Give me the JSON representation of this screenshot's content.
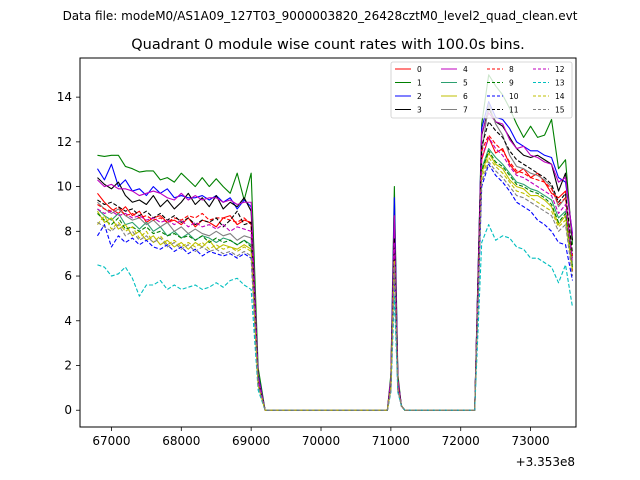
{
  "figure": {
    "suptitle": "Data file: modeM0/AS1A09_127T03_9000003820_26428cztM0_level2_quad_clean.evt",
    "title": "Quadrant 0 module wise count rates with 100.0s bins."
  },
  "chart_data": {
    "type": "line",
    "x_offset_label": "+3.353e8",
    "xlim": [
      66550,
      73650
    ],
    "ylim": [
      -0.75,
      15.75
    ],
    "x_ticks": [
      67000,
      68000,
      69000,
      70000,
      71000,
      72000,
      73000
    ],
    "x_tick_labels": [
      "67000",
      "68000",
      "69000",
      "70000",
      "71000",
      "72000",
      "73000"
    ],
    "y_ticks": [
      0,
      2,
      4,
      6,
      8,
      10,
      12,
      14
    ],
    "y_tick_labels": [
      "0",
      "2",
      "4",
      "6",
      "8",
      "10",
      "12",
      "14"
    ],
    "segments": [
      {
        "x": [
          66800,
          66900,
          67000,
          67100,
          67200,
          67300,
          67400,
          67500,
          67600,
          67700,
          67800,
          67900,
          68000,
          68100,
          68200,
          68300,
          68400,
          68500,
          68600,
          68700,
          68800,
          68900,
          69000,
          69100,
          69200
        ]
      },
      {
        "x": [
          69200,
          70950
        ]
      },
      {
        "x": [
          70950,
          71000,
          71050,
          71100,
          71150,
          71200
        ]
      },
      {
        "x": [
          71200,
          72200
        ]
      },
      {
        "x": [
          72200,
          72300,
          72400,
          72500,
          72600,
          72700,
          72800,
          72900,
          73000,
          73100,
          73200,
          73300,
          73400,
          73500,
          73600
        ]
      }
    ],
    "series": [
      {
        "name": "0",
        "color": "#ff0000",
        "dash": "solid",
        "y": [
          [
            9.7,
            9.3,
            9.0,
            8.8,
            9.1,
            8.7,
            8.9,
            8.4,
            8.6,
            8.7,
            8.4,
            8.5,
            8.3,
            8.6,
            8.2,
            8.5,
            8.4,
            8.2,
            8.6,
            8.7,
            8.3,
            8.5,
            8.4,
            1.3,
            0
          ],
          [
            0,
            0
          ],
          [
            0,
            1.1,
            7.8,
            1.3,
            0.2,
            0
          ],
          [
            0,
            0
          ],
          [
            0,
            11.2,
            12.2,
            11.5,
            11.7,
            11.0,
            10.6,
            10.8,
            10.4,
            10.6,
            10.2,
            9.7,
            9.5,
            9.8,
            6.2
          ]
        ]
      },
      {
        "name": "1",
        "color": "#008000",
        "dash": "solid",
        "y": [
          [
            11.4,
            11.35,
            11.4,
            11.4,
            10.9,
            10.8,
            10.65,
            10.7,
            10.7,
            10.3,
            10.4,
            10.2,
            10.6,
            10.3,
            10.0,
            10.4,
            10.0,
            10.35,
            10.0,
            9.7,
            10.6,
            9.4,
            10.6,
            1.9,
            0
          ],
          [
            0,
            0
          ],
          [
            0,
            1.6,
            10.0,
            1.6,
            0.2,
            0
          ],
          [
            0,
            0
          ],
          [
            0,
            12.8,
            15.0,
            14.5,
            14.1,
            13.5,
            12.8,
            12.2,
            12.7,
            12.2,
            12.3,
            13.0,
            10.8,
            11.2,
            7.4
          ]
        ]
      },
      {
        "name": "2",
        "color": "#0000ff",
        "dash": "solid",
        "y": [
          [
            10.8,
            10.3,
            11.0,
            10.0,
            10.3,
            9.8,
            9.9,
            9.6,
            10.0,
            9.7,
            9.9,
            9.5,
            9.6,
            9.5,
            9.5,
            9.6,
            9.4,
            9.6,
            9.3,
            9.5,
            9.0,
            9.4,
            9.1,
            1.6,
            0
          ],
          [
            0,
            0
          ],
          [
            0,
            1.4,
            9.5,
            1.4,
            0.2,
            0
          ],
          [
            0,
            0
          ],
          [
            0,
            12.6,
            13.8,
            13.1,
            13.0,
            12.6,
            12.0,
            11.8,
            11.6,
            11.6,
            11.4,
            11.3,
            10.4,
            10.2,
            7.9
          ]
        ]
      },
      {
        "name": "3",
        "color": "#000000",
        "dash": "solid",
        "y": [
          [
            10.4,
            10.1,
            9.9,
            10.2,
            9.6,
            9.3,
            9.4,
            9.2,
            9.6,
            9.1,
            9.4,
            9.0,
            9.3,
            9.7,
            9.2,
            9.5,
            9.1,
            9.6,
            9.0,
            9.3,
            9.1,
            9.5,
            8.9,
            1.5,
            0
          ],
          [
            0,
            0
          ],
          [
            0,
            1.4,
            8.6,
            1.4,
            0.2,
            0
          ],
          [
            0,
            0
          ],
          [
            0,
            12.3,
            13.5,
            12.9,
            12.7,
            12.2,
            11.7,
            11.4,
            11.3,
            11.4,
            11.2,
            11.0,
            9.8,
            10.6,
            7.6
          ]
        ]
      },
      {
        "name": "4",
        "color": "#bf00bf",
        "dash": "solid",
        "y": [
          [
            10.3,
            10.0,
            10.1,
            9.9,
            9.9,
            9.8,
            9.6,
            9.7,
            9.8,
            9.7,
            9.5,
            9.4,
            9.7,
            9.4,
            9.6,
            9.4,
            9.5,
            9.5,
            9.3,
            9.4,
            9.2,
            9.3,
            9.3,
            1.5,
            0
          ],
          [
            0,
            0
          ],
          [
            0,
            1.4,
            8.7,
            1.4,
            0.2,
            0
          ],
          [
            0,
            0
          ],
          [
            0,
            12.4,
            13.3,
            12.9,
            12.8,
            12.1,
            11.7,
            11.8,
            11.4,
            11.3,
            11.1,
            11.0,
            10.2,
            10.4,
            7.8
          ]
        ]
      },
      {
        "name": "5",
        "color": "#2ca070",
        "dash": "solid",
        "y": [
          [
            9.0,
            8.7,
            8.5,
            8.8,
            8.3,
            8.4,
            8.1,
            8.4,
            8.0,
            8.2,
            7.8,
            8.0,
            7.7,
            7.9,
            7.6,
            7.8,
            7.7,
            7.5,
            7.7,
            7.6,
            7.4,
            7.6,
            7.4,
            1.2,
            0
          ],
          [
            0,
            0
          ],
          [
            0,
            1.0,
            7.0,
            1.0,
            0.2,
            0
          ],
          [
            0,
            0
          ],
          [
            0,
            10.8,
            11.7,
            11.3,
            11.0,
            10.6,
            10.2,
            10.1,
            9.9,
            9.8,
            9.6,
            9.4,
            8.6,
            8.9,
            6.5
          ]
        ]
      },
      {
        "name": "6",
        "color": "#bfbf00",
        "dash": "solid",
        "y": [
          [
            8.9,
            8.4,
            8.6,
            8.1,
            8.3,
            7.8,
            8.0,
            7.6,
            7.8,
            7.4,
            7.6,
            7.3,
            7.5,
            7.2,
            7.5,
            7.3,
            7.6,
            7.2,
            7.4,
            7.3,
            7.2,
            7.4,
            7.2,
            1.2,
            0
          ],
          [
            0,
            0
          ],
          [
            0,
            1.0,
            6.9,
            1.0,
            0.2,
            0
          ],
          [
            0,
            0
          ],
          [
            0,
            10.6,
            11.5,
            11.0,
            10.8,
            10.3,
            10.0,
            9.9,
            9.6,
            9.6,
            9.4,
            9.1,
            8.3,
            8.7,
            6.3
          ]
        ]
      },
      {
        "name": "7",
        "color": "#808080",
        "dash": "solid",
        "y": [
          [
            9.3,
            9.0,
            8.8,
            9.0,
            8.7,
            8.5,
            8.6,
            8.3,
            8.5,
            8.2,
            8.4,
            8.0,
            8.2,
            7.9,
            8.1,
            7.9,
            7.8,
            8.0,
            7.8,
            7.9,
            7.6,
            7.8,
            7.7,
            1.3,
            0
          ],
          [
            0,
            0
          ],
          [
            0,
            1.1,
            7.4,
            1.1,
            0.2,
            0
          ],
          [
            0,
            0
          ],
          [
            0,
            11.5,
            13.7,
            12.8,
            12.3,
            11.4,
            10.9,
            10.8,
            10.6,
            10.5,
            10.3,
            10.0,
            9.1,
            9.5,
            6.8
          ]
        ]
      },
      {
        "name": "8",
        "color": "#ff0000",
        "dash": "dashed",
        "y": [
          [
            9.2,
            9.0,
            8.9,
            9.1,
            8.7,
            8.8,
            8.6,
            8.7,
            8.5,
            8.6,
            8.4,
            8.6,
            8.5,
            8.7,
            8.6,
            8.8,
            8.5,
            8.6,
            8.6,
            8.5,
            8.4,
            8.6,
            8.3,
            1.3,
            0
          ],
          [
            0,
            0
          ],
          [
            0,
            1.1,
            7.6,
            1.1,
            0.2,
            0
          ],
          [
            0,
            0
          ],
          [
            0,
            11.6,
            12.3,
            11.9,
            11.6,
            11.1,
            10.7,
            10.6,
            10.4,
            10.3,
            10.2,
            9.9,
            9.2,
            9.5,
            6.9
          ]
        ]
      },
      {
        "name": "9",
        "color": "#008000",
        "dash": "dashed",
        "y": [
          [
            8.8,
            8.5,
            8.3,
            8.6,
            8.1,
            8.2,
            8.0,
            8.2,
            7.9,
            8.0,
            7.8,
            7.9,
            7.7,
            7.8,
            7.6,
            7.8,
            7.5,
            7.7,
            7.5,
            7.6,
            7.4,
            7.6,
            7.3,
            1.2,
            0
          ],
          [
            0,
            0
          ],
          [
            0,
            1.0,
            6.9,
            1.0,
            0.2,
            0
          ],
          [
            0,
            0
          ],
          [
            0,
            10.7,
            11.6,
            11.1,
            10.9,
            10.5,
            10.1,
            10.0,
            9.8,
            9.7,
            9.5,
            9.2,
            8.4,
            8.8,
            6.4
          ]
        ]
      },
      {
        "name": "10",
        "color": "#0000ff",
        "dash": "dashed",
        "y": [
          [
            7.8,
            8.3,
            7.3,
            7.8,
            7.5,
            7.7,
            7.4,
            7.6,
            7.3,
            7.2,
            7.4,
            7.1,
            7.3,
            7.0,
            7.2,
            6.9,
            7.1,
            7.0,
            6.9,
            7.0,
            6.8,
            7.0,
            6.8,
            1.1,
            0
          ],
          [
            0,
            0
          ],
          [
            0,
            0.9,
            6.4,
            0.9,
            0.2,
            0
          ],
          [
            0,
            0
          ],
          [
            0,
            10.0,
            11.0,
            10.5,
            10.2,
            9.8,
            9.3,
            9.1,
            8.9,
            8.5,
            8.3,
            8.0,
            7.5,
            7.4,
            5.8
          ]
        ]
      },
      {
        "name": "11",
        "color": "#000000",
        "dash": "dashed",
        "y": [
          [
            9.4,
            9.2,
            9.3,
            9.1,
            8.9,
            9.0,
            8.7,
            8.9,
            8.6,
            8.8,
            8.5,
            8.7,
            8.4,
            8.6,
            8.3,
            8.5,
            8.4,
            8.6,
            8.2,
            8.5,
            8.9,
            8.3,
            8.4,
            1.3,
            0
          ],
          [
            0,
            0
          ],
          [
            0,
            1.1,
            7.7,
            1.1,
            0.2,
            0
          ],
          [
            0,
            0
          ],
          [
            0,
            11.8,
            12.9,
            12.5,
            12.2,
            11.6,
            11.2,
            11.0,
            10.8,
            10.6,
            10.4,
            10.1,
            9.3,
            9.7,
            7.0
          ]
        ]
      },
      {
        "name": "12",
        "color": "#bf00bf",
        "dash": "dashed",
        "y": [
          [
            9.0,
            8.8,
            8.9,
            8.7,
            8.8,
            8.6,
            8.7,
            8.5,
            8.6,
            8.4,
            8.5,
            8.3,
            8.5,
            8.2,
            8.4,
            8.2,
            8.3,
            8.1,
            8.3,
            8.0,
            8.2,
            8.1,
            8.0,
            1.3,
            0
          ],
          [
            0,
            0
          ],
          [
            0,
            1.1,
            7.5,
            1.1,
            0.2,
            0
          ],
          [
            0,
            0
          ],
          [
            0,
            11.3,
            12.2,
            11.7,
            11.4,
            10.9,
            10.5,
            10.4,
            10.2,
            10.0,
            9.8,
            9.6,
            8.8,
            9.2,
            6.6
          ]
        ]
      },
      {
        "name": "13",
        "color": "#00bfbf",
        "dash": "dashed",
        "y": [
          [
            6.5,
            6.4,
            6.0,
            6.1,
            6.4,
            5.9,
            5.1,
            5.6,
            5.6,
            5.8,
            5.4,
            5.6,
            5.4,
            5.5,
            5.6,
            5.4,
            5.5,
            5.7,
            5.5,
            5.8,
            5.9,
            5.6,
            5.4,
            0.9,
            0
          ],
          [
            0,
            0
          ],
          [
            0,
            0.8,
            5.1,
            0.8,
            0.2,
            0
          ],
          [
            0,
            0
          ],
          [
            0,
            7.5,
            8.3,
            7.6,
            7.8,
            7.7,
            7.3,
            7.2,
            6.8,
            6.8,
            6.6,
            6.4,
            5.7,
            6.5,
            4.6
          ]
        ]
      },
      {
        "name": "14",
        "color": "#bfbf00",
        "dash": "dashed",
        "y": [
          [
            8.3,
            8.7,
            8.1,
            8.4,
            8.0,
            8.2,
            7.7,
            8.0,
            7.5,
            7.8,
            7.4,
            7.6,
            7.3,
            7.5,
            7.3,
            7.5,
            7.2,
            7.4,
            7.2,
            7.3,
            7.1,
            7.3,
            7.1,
            1.1,
            0
          ],
          [
            0,
            0
          ],
          [
            0,
            1.0,
            6.7,
            1.0,
            0.2,
            0
          ],
          [
            0,
            0
          ],
          [
            0,
            10.4,
            11.3,
            10.9,
            10.6,
            10.2,
            9.8,
            9.7,
            9.5,
            9.3,
            9.1,
            8.9,
            8.2,
            8.5,
            6.2
          ]
        ]
      },
      {
        "name": "15",
        "color": "#808080",
        "dash": "dashed",
        "y": [
          [
            8.4,
            8.2,
            8.0,
            8.3,
            7.8,
            8.0,
            7.6,
            7.8,
            7.5,
            7.7,
            7.3,
            7.5,
            7.2,
            7.4,
            7.1,
            7.3,
            7.1,
            7.2,
            7.0,
            7.1,
            6.9,
            7.1,
            6.9,
            1.1,
            0
          ],
          [
            0,
            0
          ],
          [
            0,
            0.9,
            6.5,
            0.9,
            0.2,
            0
          ],
          [
            0,
            0
          ],
          [
            0,
            10.2,
            11.1,
            10.7,
            10.4,
            10.0,
            9.6,
            9.5,
            9.3,
            9.1,
            8.9,
            8.7,
            8.0,
            8.3,
            6.0
          ]
        ]
      }
    ],
    "legend_placement": "top-right",
    "legend_columns": 4
  }
}
